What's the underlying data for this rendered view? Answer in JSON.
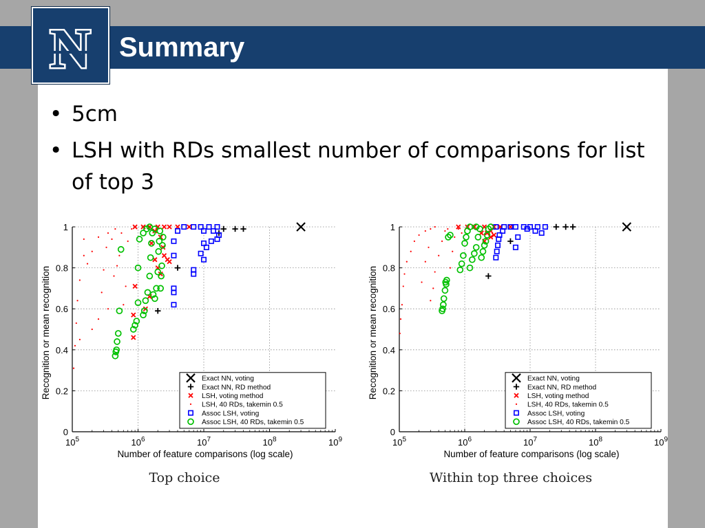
{
  "header": {
    "title": "Summary",
    "logo_letter": "N",
    "bar_color": "#173f6e"
  },
  "bullets": [
    "5cm",
    "LSH with RDs smallest number of comparisons for list of top 3"
  ],
  "chart_data": [
    {
      "type": "scatter",
      "caption": "Top choice",
      "xlabel": "Number of feature comparisons (log scale)",
      "ylabel": "Recognition or mean recognition",
      "xscale": "log",
      "xlim": [
        100000,
        1000000000
      ],
      "ylim": [
        0,
        1
      ],
      "xticks": [
        "10^5",
        "10^6",
        "10^7",
        "10^8",
        "10^9"
      ],
      "yticks": [
        "0",
        "0.2",
        "0.4",
        "0.6",
        "0.8",
        "1"
      ],
      "grid": true,
      "legend_position": "bottom-right",
      "series": [
        {
          "name": "Exact NN, voting",
          "marker": "x",
          "color": "#000000",
          "points": [
            [
              300000000,
              1.0
            ]
          ]
        },
        {
          "name": "Exact NN, RD method",
          "marker": "plus",
          "color": "#000000",
          "points": [
            [
              20000000,
              0.99
            ],
            [
              30000000,
              0.99
            ],
            [
              40000000,
              0.99
            ],
            [
              17000000,
              0.97
            ],
            [
              4000000,
              0.8
            ],
            [
              2000000,
              0.59
            ]
          ]
        },
        {
          "name": "LSH, voting method",
          "marker": "star",
          "color": "#ff0000",
          "points": [
            [
              900000,
              1.0
            ],
            [
              1200000,
              1.0
            ],
            [
              1500000,
              1.0
            ],
            [
              2000000,
              1.0
            ],
            [
              2500000,
              1.0
            ],
            [
              3000000,
              1.0
            ],
            [
              4000000,
              1.0
            ],
            [
              6000000,
              1.0
            ],
            [
              1800000,
              0.98
            ],
            [
              2200000,
              0.95
            ],
            [
              1600000,
              0.92
            ],
            [
              2400000,
              0.9
            ],
            [
              2500000,
              0.86
            ],
            [
              2800000,
              0.84
            ],
            [
              1800000,
              0.84
            ],
            [
              3000000,
              0.83
            ],
            [
              2000000,
              0.8
            ],
            [
              2200000,
              0.77
            ],
            [
              900000,
              0.71
            ],
            [
              1500000,
              0.66
            ],
            [
              1300000,
              0.6
            ],
            [
              850000,
              0.57
            ],
            [
              850000,
              0.46
            ]
          ]
        },
        {
          "name": "LSH, 40 RDs, takemin 0.5",
          "marker": "dot",
          "color": "#ff0000",
          "points": [
            [
              105000,
              0.31
            ],
            [
              110000,
              0.42
            ],
            [
              115000,
              0.53
            ],
            [
              120000,
              0.64
            ],
            [
              130000,
              0.74
            ],
            [
              150000,
              0.86
            ],
            [
              170000,
              0.82
            ],
            [
              200000,
              0.88
            ],
            [
              250000,
              0.55
            ],
            [
              280000,
              0.68
            ],
            [
              300000,
              0.79
            ],
            [
              330000,
              0.9
            ],
            [
              350000,
              0.6
            ],
            [
              400000,
              0.94
            ],
            [
              430000,
              0.76
            ],
            [
              480000,
              0.81
            ],
            [
              520000,
              0.86
            ],
            [
              560000,
              0.97
            ],
            [
              600000,
              0.62
            ],
            [
              650000,
              0.71
            ],
            [
              700000,
              0.93
            ],
            [
              800000,
              0.99
            ],
            [
              450000,
              0.99
            ],
            [
              350000,
              0.97
            ],
            [
              250000,
              0.95
            ],
            [
              150000,
              0.94
            ],
            [
              200000,
              0.5
            ],
            [
              130000,
              0.45
            ]
          ]
        },
        {
          "name": "Assoc LSH, voting",
          "marker": "square",
          "color": "#0000ff",
          "points": [
            [
              5000000,
              1.0
            ],
            [
              7000000,
              1.0
            ],
            [
              9000000,
              1.0
            ],
            [
              12000000,
              1.0
            ],
            [
              16000000,
              1.0
            ],
            [
              10000000,
              0.98
            ],
            [
              14000000,
              0.98
            ],
            [
              17000000,
              0.96
            ],
            [
              4000000,
              0.98
            ],
            [
              3500000,
              0.93
            ],
            [
              13000000,
              0.93
            ],
            [
              16000000,
              0.94
            ],
            [
              10000000,
              0.92
            ],
            [
              11000000,
              0.9
            ],
            [
              9000000,
              0.87
            ],
            [
              10000000,
              0.84
            ],
            [
              3500000,
              0.86
            ],
            [
              7000000,
              0.79
            ],
            [
              7000000,
              0.77
            ],
            [
              3500000,
              0.7
            ],
            [
              3500000,
              0.68
            ],
            [
              3500000,
              0.62
            ]
          ]
        },
        {
          "name": "Assoc LSH, 40 RDs, takemin 0.5",
          "marker": "circle",
          "color": "#00c000",
          "points": [
            [
              450000,
              0.37
            ],
            [
              460000,
              0.39
            ],
            [
              470000,
              0.4
            ],
            [
              480000,
              0.44
            ],
            [
              500000,
              0.48
            ],
            [
              520000,
              0.59
            ],
            [
              550000,
              0.89
            ],
            [
              850000,
              0.5
            ],
            [
              900000,
              0.52
            ],
            [
              950000,
              0.54
            ],
            [
              1000000,
              0.63
            ],
            [
              1000000,
              0.8
            ],
            [
              1050000,
              0.94
            ],
            [
              1200000,
              0.57
            ],
            [
              1250000,
              0.59
            ],
            [
              1300000,
              0.64
            ],
            [
              1400000,
              0.68
            ],
            [
              1500000,
              0.76
            ],
            [
              1550000,
              0.85
            ],
            [
              1600000,
              0.92
            ],
            [
              1650000,
              0.97
            ],
            [
              1700000,
              0.67
            ],
            [
              1800000,
              0.65
            ],
            [
              1900000,
              0.7
            ],
            [
              2000000,
              0.78
            ],
            [
              2050000,
              0.88
            ],
            [
              2100000,
              0.93
            ],
            [
              2150000,
              0.98
            ],
            [
              2200000,
              0.7
            ],
            [
              2250000,
              0.76
            ],
            [
              2300000,
              0.81
            ],
            [
              2350000,
              0.91
            ],
            [
              2400000,
              0.95
            ],
            [
              1200000,
              0.97
            ],
            [
              1350000,
              0.99
            ],
            [
              1500000,
              1.0
            ],
            [
              1800000,
              0.99
            ]
          ]
        }
      ]
    },
    {
      "type": "scatter",
      "caption": "Within top three choices",
      "xlabel": "Number of feature comparisons (log scale)",
      "ylabel": "Recognition or mean recognition",
      "xscale": "log",
      "xlim": [
        100000,
        1000000000
      ],
      "ylim": [
        0,
        1
      ],
      "xticks": [
        "10^5",
        "10^6",
        "10^7",
        "10^8",
        "10^9"
      ],
      "yticks": [
        "0",
        "0.2",
        "0.4",
        "0.6",
        "0.8",
        "1"
      ],
      "grid": true,
      "legend_position": "bottom-right",
      "series": [
        {
          "name": "Exact NN, voting",
          "marker": "x",
          "color": "#000000",
          "points": [
            [
              300000000,
              1.0
            ]
          ]
        },
        {
          "name": "Exact NN, RD method",
          "marker": "plus",
          "color": "#000000",
          "points": [
            [
              25000000,
              1.0
            ],
            [
              35000000,
              1.0
            ],
            [
              45000000,
              1.0
            ],
            [
              5000000,
              0.93
            ],
            [
              2300000,
              0.76
            ]
          ]
        },
        {
          "name": "LSH, voting method",
          "marker": "star",
          "color": "#ff0000",
          "points": [
            [
              800000,
              1.0
            ],
            [
              1100000,
              1.0
            ],
            [
              1400000,
              1.0
            ],
            [
              2000000,
              1.0
            ],
            [
              2800000,
              1.0
            ],
            [
              3500000,
              1.0
            ],
            [
              5000000,
              1.0
            ],
            [
              2500000,
              0.98
            ],
            [
              2200000,
              0.97
            ],
            [
              1800000,
              0.97
            ],
            [
              2500000,
              0.95
            ],
            [
              2000000,
              0.93
            ],
            [
              2800000,
              0.96
            ]
          ]
        },
        {
          "name": "LSH, 40 RDs, takemin 0.5",
          "marker": "dot",
          "color": "#ff0000",
          "points": [
            [
              102000,
              0.48
            ],
            [
              105000,
              0.55
            ],
            [
              110000,
              0.62
            ],
            [
              115000,
              0.71
            ],
            [
              120000,
              0.77
            ],
            [
              130000,
              0.83
            ],
            [
              150000,
              0.88
            ],
            [
              170000,
              0.93
            ],
            [
              200000,
              0.96
            ],
            [
              250000,
              0.98
            ],
            [
              300000,
              0.99
            ],
            [
              350000,
              1.0
            ],
            [
              220000,
              0.73
            ],
            [
              250000,
              0.83
            ],
            [
              280000,
              0.9
            ],
            [
              300000,
              0.64
            ],
            [
              330000,
              0.7
            ],
            [
              350000,
              0.78
            ],
            [
              400000,
              0.86
            ],
            [
              450000,
              0.93
            ],
            [
              500000,
              0.98
            ],
            [
              550000,
              0.99
            ],
            [
              600000,
              0.8
            ],
            [
              650000,
              0.88
            ],
            [
              700000,
              0.95
            ],
            [
              800000,
              0.99
            ],
            [
              900000,
              0.97
            ]
          ]
        },
        {
          "name": "Assoc LSH, voting",
          "marker": "square",
          "color": "#0000ff",
          "points": [
            [
              3000000,
              1.0
            ],
            [
              4000000,
              1.0
            ],
            [
              5000000,
              1.0
            ],
            [
              6000000,
              1.0
            ],
            [
              8000000,
              1.0
            ],
            [
              10000000,
              1.0
            ],
            [
              13000000,
              1.0
            ],
            [
              17000000,
              1.0
            ],
            [
              9000000,
              0.99
            ],
            [
              12000000,
              0.98
            ],
            [
              15000000,
              0.97
            ],
            [
              3800000,
              0.98
            ],
            [
              3400000,
              0.96
            ],
            [
              3300000,
              0.94
            ],
            [
              3200000,
              0.91
            ],
            [
              3100000,
              0.88
            ],
            [
              3000000,
              0.85
            ],
            [
              6000000,
              0.9
            ],
            [
              6500000,
              0.95
            ]
          ]
        },
        {
          "name": "Assoc LSH, 40 RDs, takemin 0.5",
          "marker": "circle",
          "color": "#00c000",
          "points": [
            [
              450000,
              0.59
            ],
            [
              460000,
              0.6
            ],
            [
              470000,
              0.62
            ],
            [
              480000,
              0.65
            ],
            [
              500000,
              0.69
            ],
            [
              510000,
              0.73
            ],
            [
              520000,
              0.72
            ],
            [
              530000,
              0.74
            ],
            [
              560000,
              0.95
            ],
            [
              600000,
              0.96
            ],
            [
              850000,
              0.79
            ],
            [
              900000,
              0.82
            ],
            [
              950000,
              0.86
            ],
            [
              1000000,
              0.92
            ],
            [
              1050000,
              0.95
            ],
            [
              1100000,
              0.98
            ],
            [
              1200000,
              0.8
            ],
            [
              1300000,
              0.84
            ],
            [
              1400000,
              0.87
            ],
            [
              1500000,
              0.9
            ],
            [
              1600000,
              0.95
            ],
            [
              1700000,
              0.99
            ],
            [
              1800000,
              0.85
            ],
            [
              1900000,
              0.88
            ],
            [
              2000000,
              0.91
            ],
            [
              2100000,
              0.93
            ],
            [
              2200000,
              0.96
            ],
            [
              2300000,
              0.99
            ],
            [
              1200000,
              1.0
            ],
            [
              1500000,
              1.0
            ],
            [
              2500000,
              1.0
            ]
          ]
        }
      ]
    }
  ]
}
